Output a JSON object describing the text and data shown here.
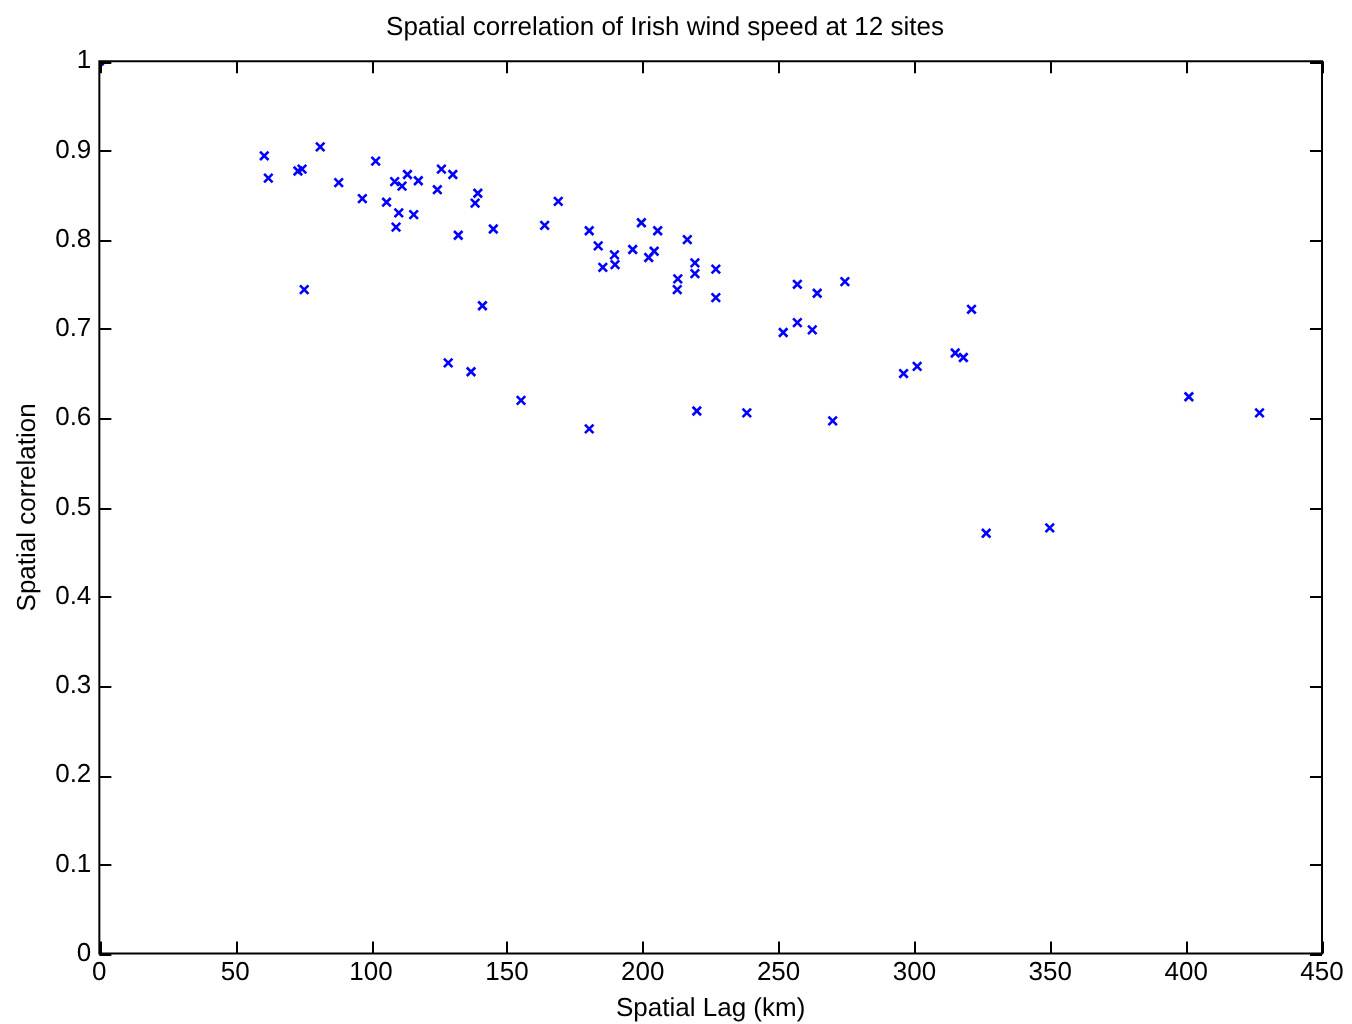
{
  "chart_data": {
    "type": "scatter",
    "title": "Spatial correlation of Irish wind speed at 12 sites",
    "xlabel": "Spatial Lag (km)",
    "ylabel": "Spatial correlation",
    "x": [
      0,
      60.7,
      62.2,
      73.1,
      74.6,
      75.4,
      81.3,
      88.1,
      96.8,
      101.7,
      105.7,
      108.7,
      109.2,
      110.2,
      111.4,
      113.4,
      115.7,
      117.4,
      124.4,
      125.9,
      128.4,
      130.1,
      132.1,
      136.8,
      138.3,
      139.3,
      141.0,
      145.0,
      155.2,
      163.9,
      168.9,
      180.3,
      180.3,
      183.6,
      185.3,
      189.6,
      189.8,
      196.3,
      199.5,
      202.2,
      204.2,
      205.5,
      212.7,
      212.9,
      216.4,
      219.2,
      219.2,
      219.9,
      226.9,
      226.9,
      238.3,
      251.7,
      256.9,
      256.9,
      262.4,
      264.2,
      269.9,
      274.4,
      296,
      301,
      315,
      318,
      321,
      326.4,
      349.8,
      401,
      427
    ],
    "series": [
      {
        "color": "#0000ff",
        "values": [
          1.0,
          0.894,
          0.869,
          0.877,
          0.879,
          0.744,
          0.904,
          0.864,
          0.846,
          0.888,
          0.842,
          0.865,
          0.814,
          0.83,
          0.86,
          0.873,
          0.828,
          0.866,
          0.856,
          0.879,
          0.662,
          0.873,
          0.805,
          0.652,
          0.841,
          0.852,
          0.726,
          0.812,
          0.62,
          0.816,
          0.843,
          0.81,
          0.588,
          0.793,
          0.769,
          0.783,
          0.772,
          0.789,
          0.819,
          0.78,
          0.787,
          0.81,
          0.744,
          0.756,
          0.8,
          0.774,
          0.762,
          0.608,
          0.767,
          0.735,
          0.606,
          0.696,
          0.75,
          0.707,
          0.699,
          0.74,
          0.597,
          0.753,
          0.65,
          0.658,
          0.673,
          0.668,
          0.722,
          0.471,
          0.477,
          0.624,
          0.606
        ]
      }
    ],
    "xlim": [
      0,
      450
    ],
    "xticks": [
      0,
      50,
      100,
      150,
      200,
      250,
      300,
      350,
      400,
      450
    ],
    "ylim": [
      0,
      1
    ],
    "yticks": [
      0,
      0.1,
      0.2,
      0.3,
      0.4,
      0.5,
      0.6,
      0.7,
      0.8,
      0.9,
      1
    ],
    "marker": "cross",
    "grid": false,
    "legend": false
  }
}
